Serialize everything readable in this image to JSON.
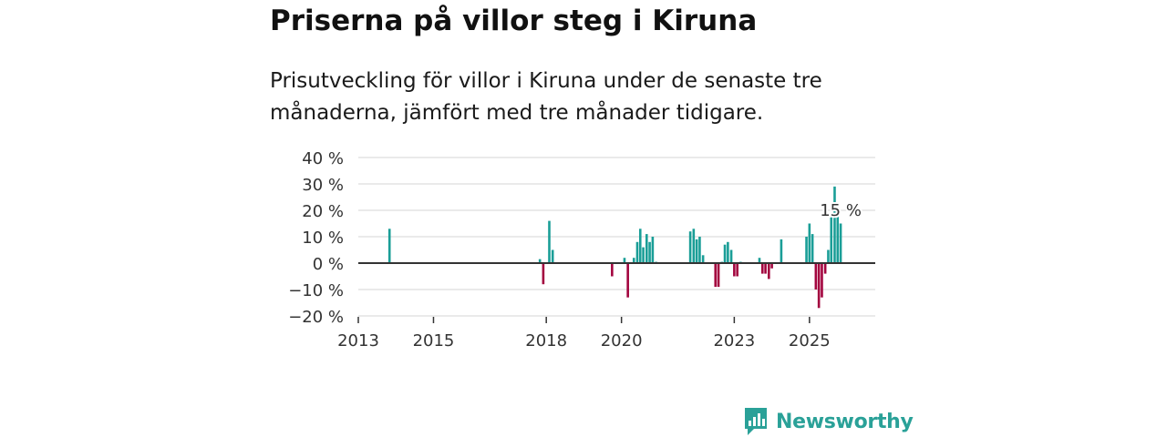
{
  "title": "Priserna på villor steg i Kiruna",
  "subtitle": "Prisutveckling för villor i Kiruna under de senaste tre månaderna, jämfört med tre månader tidigare.",
  "brand": {
    "name": "Newsworthy",
    "color": "#2aa198"
  },
  "colors": {
    "positive": "#1a9e97",
    "negative": "#a3053f",
    "grid": "#dddddd",
    "axis": "#333333"
  },
  "chart_data": {
    "type": "bar",
    "title": "Priserna på villor steg i Kiruna",
    "xlabel": "",
    "ylabel": "",
    "ylim": [
      -20,
      40
    ],
    "y_ticks": [
      40,
      30,
      20,
      10,
      0,
      -10,
      -20
    ],
    "y_tick_labels": [
      "40 %",
      "30 %",
      "20 %",
      "10 %",
      "0 %",
      "−10 %",
      "−20 %"
    ],
    "x_range": [
      2013,
      2026.75
    ],
    "x_ticks": [
      2013,
      2015,
      2018,
      2020,
      2023,
      2025
    ],
    "x_tick_labels": [
      "2013",
      "2015",
      "2018",
      "2020",
      "2023",
      "2025"
    ],
    "annotation": {
      "text": "15 %",
      "x": 2025.83,
      "value": 15
    },
    "series": [
      {
        "name": "Prisutveckling",
        "x": [
          2013.83,
          2017.83,
          2017.92,
          2018.08,
          2018.17,
          2019.75,
          2020.08,
          2020.17,
          2020.33,
          2020.42,
          2020.5,
          2020.58,
          2020.67,
          2020.75,
          2020.83,
          2020.92,
          2021.83,
          2021.92,
          2022.0,
          2022.08,
          2022.17,
          2022.5,
          2022.58,
          2022.67,
          2022.75,
          2022.83,
          2022.92,
          2023.0,
          2023.08,
          2023.17,
          2023.67,
          2023.75,
          2023.83,
          2023.92,
          2024.0,
          2024.25,
          2024.92,
          2025.0,
          2025.08,
          2025.17,
          2025.25,
          2025.33,
          2025.42,
          2025.5,
          2025.58,
          2025.67,
          2025.75,
          2025.83
        ],
        "values": [
          13,
          1.5,
          -8,
          16,
          5,
          -5,
          2,
          -13,
          2,
          8,
          13,
          6,
          11,
          8,
          10,
          0.5,
          12,
          13,
          9,
          10,
          3,
          -9,
          -9,
          0.5,
          7,
          8,
          5,
          -5,
          -5,
          0.5,
          2,
          -4,
          -4,
          -6,
          -2,
          9,
          10,
          15,
          11,
          -10,
          -17,
          -13,
          -4,
          5,
          18,
          29,
          18,
          15
        ]
      }
    ]
  }
}
